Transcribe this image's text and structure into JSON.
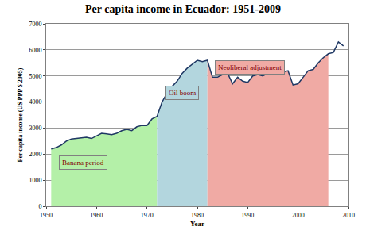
{
  "chart_data": {
    "type": "area",
    "title": "Per capita income in Ecuador: 1951-2009",
    "x_label": "Year",
    "y_label": "Per capita income (US PPP $ 2005)",
    "x": [
      1951,
      1952,
      1953,
      1954,
      1955,
      1956,
      1957,
      1958,
      1959,
      1960,
      1961,
      1962,
      1963,
      1964,
      1965,
      1966,
      1967,
      1968,
      1969,
      1970,
      1971,
      1972,
      1973,
      1974,
      1975,
      1976,
      1977,
      1978,
      1979,
      1980,
      1981,
      1982,
      1983,
      1984,
      1985,
      1986,
      1987,
      1988,
      1989,
      1990,
      1991,
      1992,
      1993,
      1994,
      1995,
      1996,
      1997,
      1998,
      1999,
      2000,
      2001,
      2002,
      2003,
      2004,
      2005,
      2006,
      2007,
      2008,
      2009
    ],
    "values": [
      2200,
      2250,
      2350,
      2500,
      2580,
      2600,
      2620,
      2650,
      2600,
      2700,
      2800,
      2780,
      2750,
      2800,
      2900,
      2950,
      2900,
      3050,
      3100,
      3100,
      3350,
      3450,
      4000,
      4350,
      4600,
      4800,
      5100,
      5300,
      5450,
      5600,
      5550,
      5600,
      4950,
      4950,
      5050,
      5100,
      4700,
      4950,
      4800,
      4750,
      5000,
      5050,
      5000,
      5100,
      5100,
      5050,
      5150,
      5200,
      4650,
      4700,
      4950,
      5200,
      5250,
      5500,
      5700,
      5850,
      5900,
      6300,
      6150
    ],
    "color": "#1f3864",
    "regions": [
      {
        "label": "Banana period",
        "start": 1951,
        "end": 1972,
        "color": "#b4f0a8"
      },
      {
        "label": "Oil boom",
        "start": 1972,
        "end": 1982,
        "color": "#b3d6de"
      },
      {
        "label": "Neoliberal adjustment",
        "start": 1982,
        "end": 2006,
        "color": "#f0aaa4"
      }
    ],
    "xlim": [
      1950,
      2010
    ],
    "xticks": [
      1950,
      1960,
      1970,
      1980,
      1990,
      2000,
      2010
    ],
    "ylim": [
      0,
      7000
    ],
    "yticks": [
      0,
      1000,
      2000,
      3000,
      4000,
      5000,
      6000,
      7000
    ],
    "grid": true
  }
}
